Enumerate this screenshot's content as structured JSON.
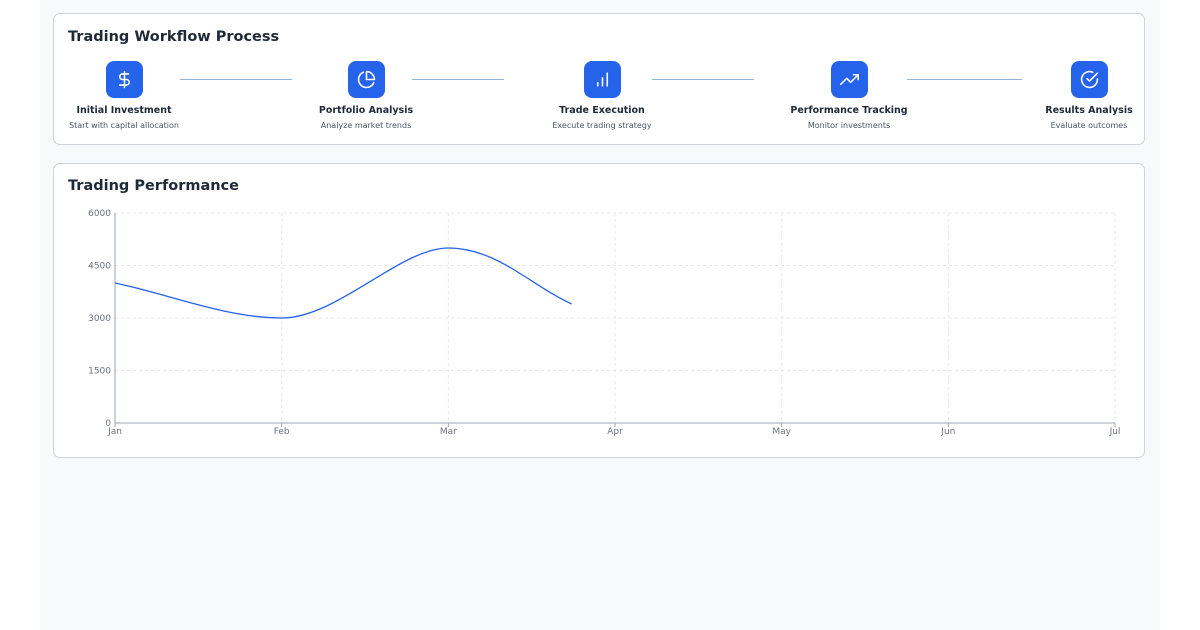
{
  "workflow": {
    "title": "Trading Workflow Process",
    "steps": [
      {
        "title": "Initial Investment",
        "description": "Start with capital allocation",
        "icon": "dollar-icon"
      },
      {
        "title": "Portfolio Analysis",
        "description": "Analyze market trends",
        "icon": "pie-chart-icon"
      },
      {
        "title": "Trade Execution",
        "description": "Execute trading strategy",
        "icon": "bar-chart-icon"
      },
      {
        "title": "Performance Tracking",
        "description": "Monitor investments",
        "icon": "trending-up-icon"
      },
      {
        "title": "Results Analysis",
        "description": "Evaluate outcomes",
        "icon": "check-circle-icon"
      }
    ]
  },
  "performance": {
    "title": "Trading Performance"
  },
  "colors": {
    "accent": "#2563eb",
    "connector": "#93b4dc",
    "line": "#2563eb"
  },
  "chart_data": {
    "type": "line",
    "title": "Trading Performance",
    "x": [
      "Jan",
      "Feb",
      "Mar",
      "Apr",
      "May",
      "Jun",
      "Jul"
    ],
    "series": [
      {
        "values": [
          {
            "x": "Jan",
            "y": 4000
          },
          {
            "x": "Feb",
            "y": 3000
          },
          {
            "x": "Mar",
            "y": 5000
          },
          {
            "x": "Mar-Apr (partial)",
            "y": 3400
          }
        ]
      }
    ],
    "ylim": [
      0,
      6000
    ],
    "yticks": [
      0,
      1500,
      3000,
      4500,
      6000
    ],
    "grid": true,
    "legend": "none"
  }
}
